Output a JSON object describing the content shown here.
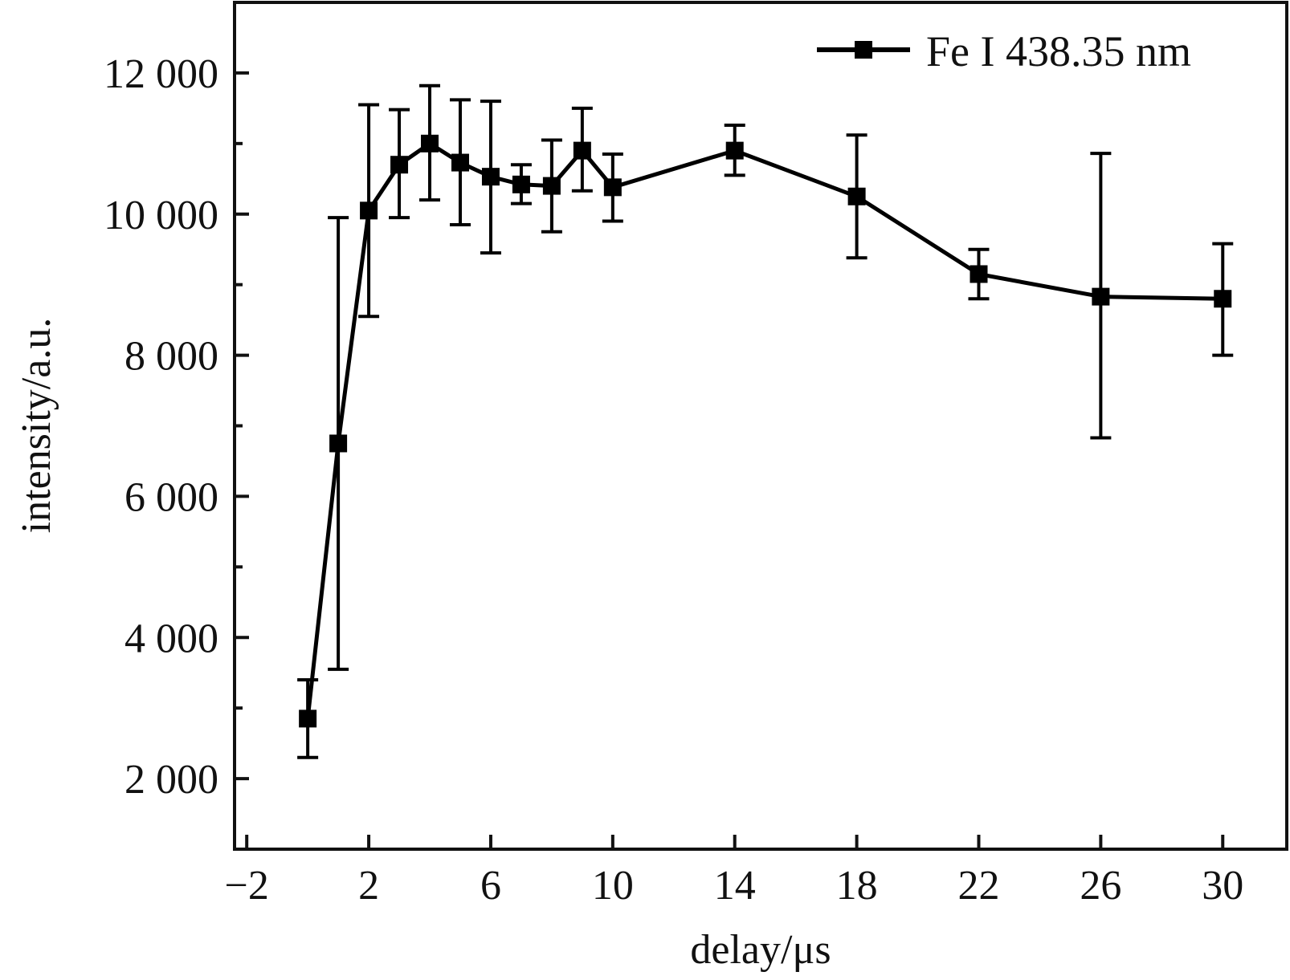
{
  "chart_data": {
    "type": "line",
    "title": "",
    "xlabel": "delay/μs",
    "ylabel": "intensity/a.u.",
    "xlim": [
      -2.4,
      32.1
    ],
    "ylim": [
      1000,
      13000
    ],
    "x_ticks": [
      -2,
      2,
      6,
      10,
      14,
      18,
      22,
      26,
      30
    ],
    "x_tick_labels": [
      "−2",
      "2",
      "6",
      "10",
      "14",
      "18",
      "22",
      "26",
      "30"
    ],
    "y_ticks": [
      2000,
      4000,
      6000,
      8000,
      10000,
      12000
    ],
    "y_tick_labels": [
      "2 000",
      "4 000",
      "6 000",
      "8 000",
      "10 000",
      "12 000"
    ],
    "y_minor_ticks": [
      3000,
      5000,
      7000,
      9000,
      11000
    ],
    "grid": false,
    "legend": {
      "position": "top-right"
    },
    "colors": {
      "series": "#000000",
      "axis": "#111111"
    },
    "series": [
      {
        "name": "Fe I 438.35 nm",
        "marker": "square",
        "x": [
          0,
          1,
          2,
          3,
          4,
          5,
          6,
          7,
          8,
          9,
          10,
          14,
          18,
          22,
          26,
          30
        ],
        "y": [
          2850,
          6750,
          10050,
          10700,
          11000,
          10730,
          10530,
          10420,
          10400,
          10900,
          10380,
          10900,
          10250,
          9150,
          8830,
          8800
        ],
        "err_low": [
          2300,
          3550,
          8550,
          9950,
          10200,
          9850,
          9450,
          10150,
          9750,
          10330,
          9900,
          10550,
          9380,
          8800,
          6830,
          8000
        ],
        "err_high": [
          3400,
          9950,
          11550,
          11480,
          11820,
          11620,
          11600,
          10700,
          11050,
          11500,
          10850,
          11260,
          11120,
          9500,
          10860,
          9580
        ]
      }
    ]
  }
}
